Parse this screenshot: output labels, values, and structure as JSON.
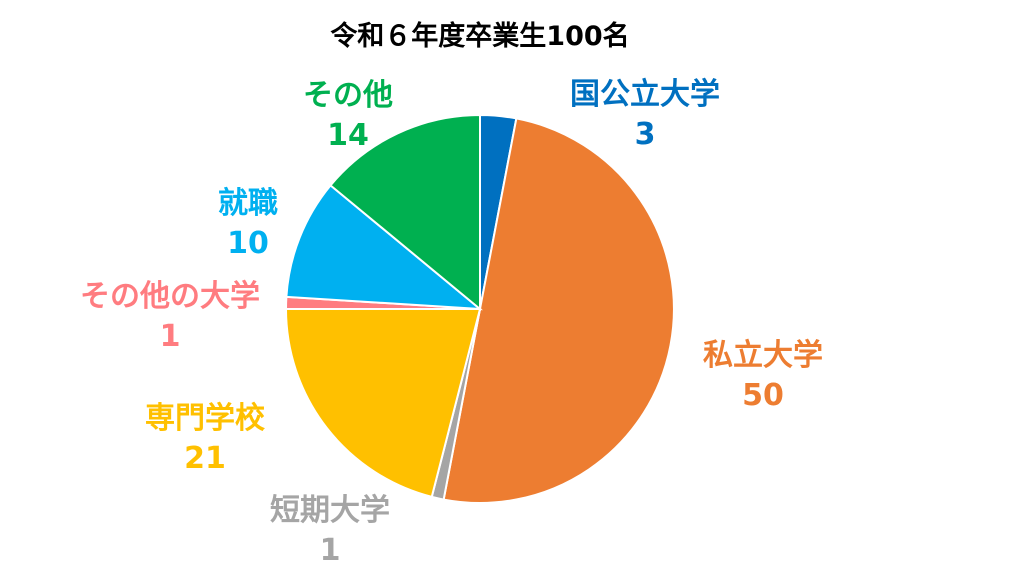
{
  "chart_data": {
    "type": "pie",
    "title": "令和６年度卒業生100名",
    "slices": [
      {
        "label": "国公立大学",
        "value": 3,
        "color": "#0070C0"
      },
      {
        "label": "私立大学",
        "value": 50,
        "color": "#ED7D31"
      },
      {
        "label": "短期大学",
        "value": 1,
        "color": "#A5A5A5"
      },
      {
        "label": "専門学校",
        "value": 21,
        "color": "#FFC000"
      },
      {
        "label": "その他の大学",
        "value": 1,
        "color": "#FF7C80"
      },
      {
        "label": "就職",
        "value": 10,
        "color": "#00B0F0"
      },
      {
        "label": "その他",
        "value": 14,
        "color": "#00B050"
      }
    ],
    "start": "top",
    "direction": "clockwise",
    "legend": "none (data labels beside slices)"
  }
}
